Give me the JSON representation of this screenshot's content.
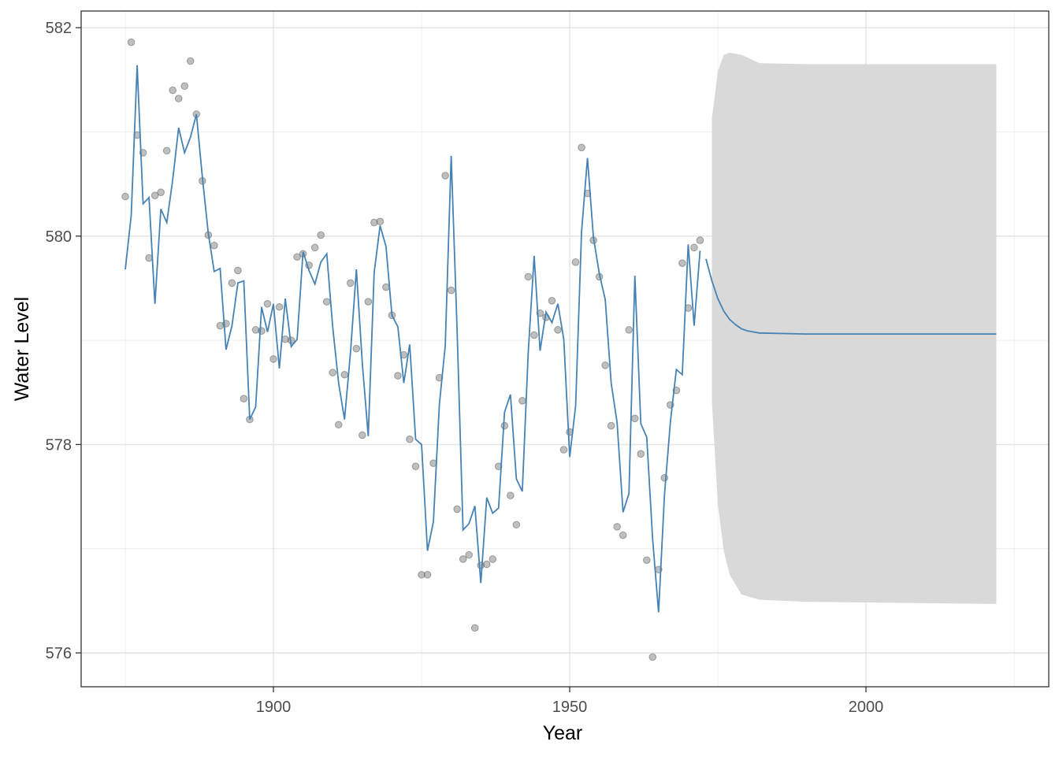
{
  "chart_data": {
    "type": "line",
    "x_label": "Year",
    "y_label": "Water Level",
    "xlim": [
      1867.55,
      2030.85
    ],
    "ylim": [
      575.675,
      582.16
    ],
    "xticks": [
      1900,
      1950,
      2000
    ],
    "yticks": [
      576,
      578,
      580,
      582
    ],
    "x_minor_grid": [
      1875,
      1925,
      1975,
      2025
    ],
    "y_minor_grid": [
      577,
      579,
      581
    ],
    "grid": true,
    "x": [
      1875,
      1876,
      1877,
      1878,
      1879,
      1880,
      1881,
      1882,
      1883,
      1884,
      1885,
      1886,
      1887,
      1888,
      1889,
      1890,
      1891,
      1892,
      1893,
      1894,
      1895,
      1896,
      1897,
      1898,
      1899,
      1900,
      1901,
      1902,
      1903,
      1904,
      1905,
      1906,
      1907,
      1908,
      1909,
      1910,
      1911,
      1912,
      1913,
      1914,
      1915,
      1916,
      1917,
      1918,
      1919,
      1920,
      1921,
      1922,
      1923,
      1924,
      1925,
      1926,
      1927,
      1928,
      1929,
      1930,
      1931,
      1932,
      1933,
      1934,
      1935,
      1936,
      1937,
      1938,
      1939,
      1940,
      1941,
      1942,
      1943,
      1944,
      1945,
      1946,
      1947,
      1948,
      1949,
      1950,
      1951,
      1952,
      1953,
      1954,
      1955,
      1956,
      1957,
      1958,
      1959,
      1960,
      1961,
      1962,
      1963,
      1964,
      1965,
      1966,
      1967,
      1968,
      1969,
      1970,
      1971,
      1972
    ],
    "observed": {
      "color": "#808080",
      "values": [
        580.38,
        581.86,
        580.97,
        580.8,
        579.79,
        580.39,
        580.42,
        580.82,
        581.4,
        581.32,
        581.44,
        581.68,
        581.17,
        580.53,
        580.01,
        579.91,
        579.14,
        579.16,
        579.55,
        579.67,
        578.44,
        578.24,
        579.1,
        579.09,
        579.35,
        578.82,
        579.32,
        579.01,
        579.0,
        579.8,
        579.83,
        579.72,
        579.89,
        580.01,
        579.37,
        578.69,
        578.19,
        578.67,
        579.55,
        578.92,
        578.09,
        579.37,
        580.13,
        580.14,
        579.51,
        579.24,
        578.66,
        578.86,
        578.05,
        577.79,
        576.75,
        576.75,
        577.82,
        578.64,
        580.58,
        579.48,
        577.38,
        576.9,
        576.94,
        576.24,
        576.84,
        576.85,
        576.9,
        577.79,
        578.18,
        577.51,
        577.23,
        578.42,
        579.61,
        579.05,
        579.26,
        579.22,
        579.38,
        579.1,
        577.95,
        578.12,
        579.75,
        580.85,
        580.41,
        579.96,
        579.61,
        578.76,
        578.18,
        577.21,
        577.13,
        579.1,
        578.25,
        577.91,
        576.89,
        575.96,
        576.8,
        577.68,
        578.38,
        578.52,
        579.74,
        579.31,
        579.89,
        579.96
      ]
    },
    "fitted": {
      "color": "#4682b4",
      "values": [
        579.68,
        580.2,
        581.64,
        580.31,
        580.37,
        579.35,
        580.26,
        580.13,
        580.54,
        581.04,
        580.8,
        580.95,
        581.17,
        580.57,
        580.03,
        579.66,
        579.69,
        578.91,
        579.14,
        579.55,
        579.57,
        578.24,
        578.36,
        579.32,
        579.08,
        579.35,
        578.73,
        579.4,
        578.94,
        579.01,
        579.85,
        579.67,
        579.54,
        579.75,
        579.83,
        579.13,
        578.59,
        578.24,
        578.88,
        579.68,
        578.78,
        578.08,
        579.65,
        580.1,
        579.9,
        579.24,
        579.13,
        578.59,
        578.96,
        578.05,
        578.0,
        576.98,
        577.26,
        578.38,
        578.95,
        580.77,
        579.09,
        577.18,
        577.24,
        577.41,
        576.67,
        577.49,
        577.34,
        577.39,
        578.31,
        578.48,
        577.67,
        577.55,
        578.88,
        579.81,
        578.9,
        579.27,
        579.17,
        579.35,
        579.01,
        577.88,
        578.37,
        580.04,
        580.75,
        579.99,
        579.64,
        579.39,
        578.59,
        578.21,
        577.35,
        577.53,
        579.62,
        578.2,
        578.07,
        577.09,
        576.39,
        577.52,
        578.22,
        578.72,
        578.67,
        579.92,
        579.14,
        579.86
      ]
    },
    "forecast": {
      "color": "#4682b4",
      "x": [
        1973,
        1974,
        1975,
        1976,
        1977,
        1978,
        1979,
        1980,
        1981,
        1982,
        1990,
        2000,
        2010,
        2022
      ],
      "values": [
        579.78,
        579.57,
        579.4,
        579.28,
        579.2,
        579.15,
        579.11,
        579.09,
        579.08,
        579.07,
        579.06,
        579.06,
        579.06,
        579.06
      ]
    },
    "band": {
      "color": "#d9d9d9",
      "x": [
        1974,
        1975,
        1976,
        1977,
        1979,
        1982,
        1990,
        2022
      ],
      "lower": [
        578.41,
        577.43,
        576.98,
        576.75,
        576.56,
        576.51,
        576.49,
        576.47
      ],
      "upper": [
        581.13,
        581.58,
        581.74,
        581.76,
        581.74,
        581.66,
        581.65,
        581.65
      ]
    }
  }
}
